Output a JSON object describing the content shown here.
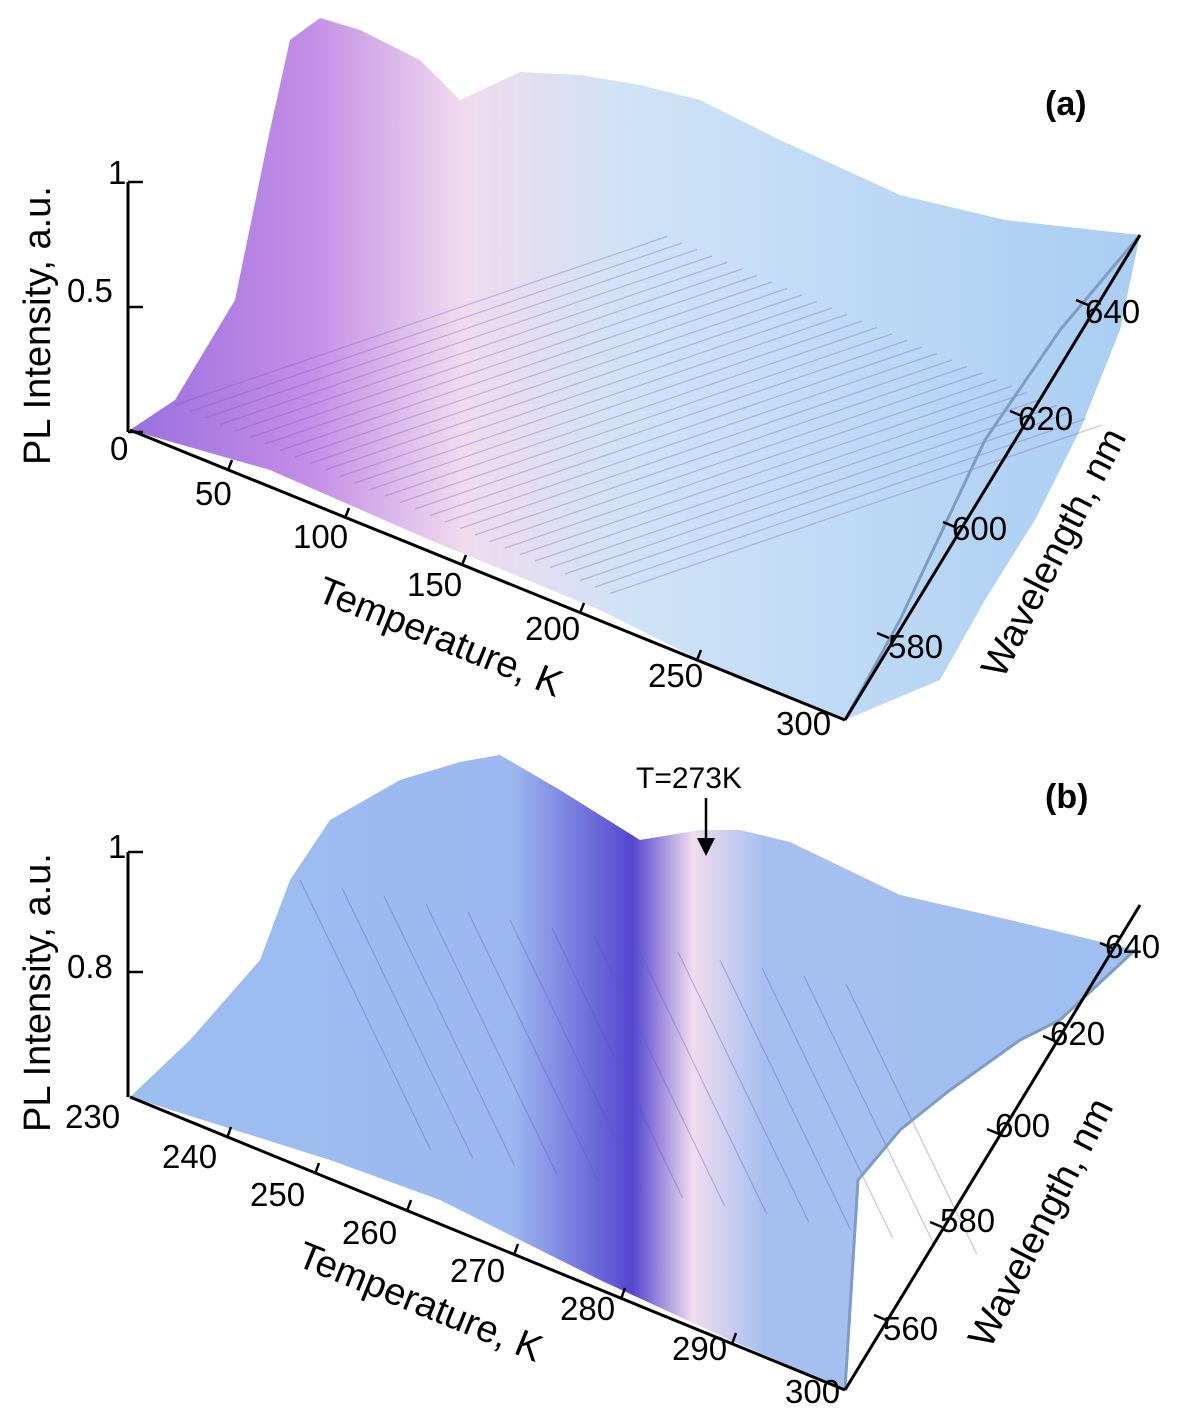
{
  "chart_data": [
    {
      "type": "surface3d",
      "panel_label": "(a)",
      "xlabel": "Temperature, K",
      "ylabel": "Wavelength, nm",
      "zlabel": "PL Intensity, a.u.",
      "x_ticks": [
        "50",
        "100",
        "150",
        "200",
        "250",
        "300"
      ],
      "y_ticks": [
        "580",
        "600",
        "620",
        "640"
      ],
      "z_ticks": [
        "0",
        "0.5",
        "1"
      ],
      "xlim": [
        0,
        300
      ],
      "ylim": [
        570,
        650
      ],
      "zlim": [
        0,
        1
      ],
      "colors": {
        "base": "#a9cdf2",
        "peak": "#8a63d6",
        "highlight": "#f6e4ee"
      },
      "ridge_profile": {
        "x": [
          5,
          25,
          50,
          75,
          100,
          125,
          150,
          175,
          200,
          225,
          250,
          275,
          300
        ],
        "z": [
          1.0,
          0.95,
          0.72,
          0.5,
          0.35,
          0.24,
          0.16,
          0.11,
          0.08,
          0.06,
          0.04,
          0.03,
          0.02
        ]
      }
    },
    {
      "type": "surface3d",
      "panel_label": "(b)",
      "xlabel": "Temperature, K",
      "ylabel": "Wavelength, nm",
      "zlabel": "PL Intensity, a.u.",
      "x_ticks": [
        "230",
        "240",
        "250",
        "260",
        "270",
        "280",
        "290",
        "300"
      ],
      "y_ticks": [
        "560",
        "580",
        "600",
        "620",
        "640"
      ],
      "z_ticks": [
        "0.8",
        "1"
      ],
      "xlim": [
        230,
        300
      ],
      "ylim": [
        550,
        650
      ],
      "zlim": [
        0.6,
        1
      ],
      "annotation": "T=273K",
      "colors": {
        "base": "#9dbff0",
        "peak": "#4a3cc8",
        "highlight": "#f6e4ee"
      },
      "ridge_profile": {
        "x": [
          230,
          240,
          250,
          260,
          266,
          270,
          273,
          276,
          280,
          285,
          290,
          295,
          300
        ],
        "z": [
          0.82,
          0.85,
          0.84,
          0.8,
          0.84,
          0.93,
          1.0,
          0.93,
          0.86,
          0.88,
          0.86,
          0.84,
          0.82
        ]
      }
    }
  ]
}
